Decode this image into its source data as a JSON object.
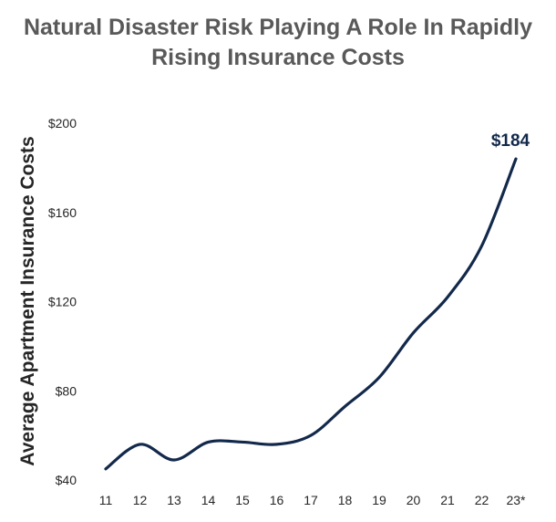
{
  "chart_data": {
    "type": "line",
    "title_lines": [
      "Natural Disaster Risk Playing A Role In Rapidly",
      "Rising Insurance Costs"
    ],
    "xlabel": "",
    "ylabel": "Average Apartment Insurance Costs",
    "categories": [
      "11",
      "12",
      "13",
      "14",
      "15",
      "16",
      "17",
      "18",
      "19",
      "20",
      "21",
      "22",
      "23*"
    ],
    "series": [
      {
        "values": [
          45,
          56,
          49,
          57,
          57,
          56,
          60,
          73,
          86,
          106,
          122,
          145,
          184
        ]
      }
    ],
    "y_ticks": [
      "$40",
      "$80",
      "$120",
      "$160",
      "$200"
    ],
    "y_tick_values": [
      40,
      80,
      120,
      160,
      200
    ],
    "ylim": [
      40,
      200
    ],
    "grid": false,
    "legend": "none",
    "annotations": [
      {
        "category": "23*",
        "text": "$184"
      }
    ],
    "colors": {
      "line": "#13294b",
      "title": "#595959",
      "axis_text": "#262626"
    }
  }
}
